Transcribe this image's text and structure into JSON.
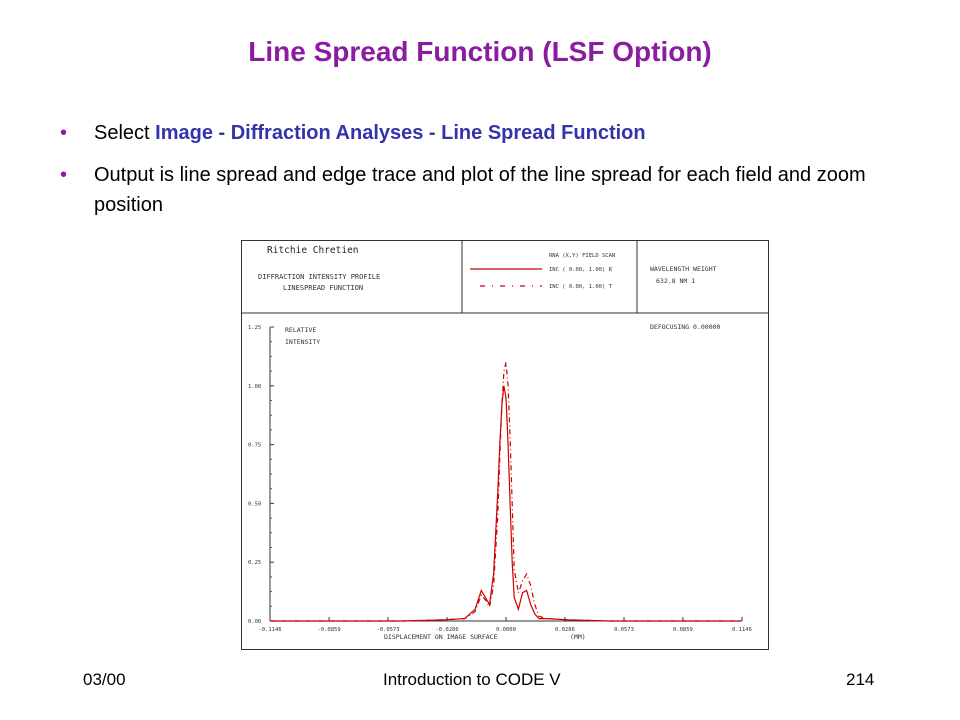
{
  "slide": {
    "title": "Line Spread Function (LSF Option)",
    "bullets": [
      {
        "prefix": "Select ",
        "highlight": "Image - Diffraction Analyses - Line Spread Function"
      },
      {
        "text": "Output is line spread and edge trace and plot of the line spread for each field and zoom position"
      }
    ],
    "bullet_char": "•",
    "footer_left": "03/00",
    "footer_center": "Introduction to CODE V",
    "footer_right": "214",
    "colors": {
      "title": "#8a1ca0",
      "highlight": "#3333aa",
      "curve": "#cc0000"
    }
  },
  "plot_header": {
    "lens_title": "Ritchie Chretien",
    "line1": "DIFFRACTION INTENSITY PROFILE",
    "line2": "LINESPREAD FUNCTION",
    "legend_header": "RNA  (X,Y) FIELD SCAN",
    "legend_r": "INC ( 0.00, 1.00)  R",
    "legend_t": "INC ( 0.00, 1.00)  T",
    "wave_header": "WAVELENGTH   WEIGHT",
    "wave_values": "632.8 NM      1",
    "defocus": "DEFOCUSING 0.00000",
    "ylabel1": "RELATIVE",
    "ylabel2": "INTENSITY",
    "xlabel": "DISPLACEMENT ON IMAGE SURFACE",
    "xunit": "(MM)"
  },
  "chart_data": {
    "type": "line",
    "xlabel": "DISPLACEMENT ON IMAGE SURFACE (MM)",
    "ylabel": "RELATIVE INTENSITY",
    "xlim": [
      -0.1146,
      0.1146
    ],
    "ylim": [
      0,
      1.25
    ],
    "x_ticks": [
      "-0.1146",
      "-0.0859",
      "-0.0573",
      "-0.0286",
      "0.0000",
      "0.0286",
      "0.0573",
      "0.0859",
      "0.1146"
    ],
    "y_ticks": [
      "0.00",
      "0.25",
      "0.50",
      "0.75",
      "1.00",
      "1.25"
    ],
    "y_tick_values": [
      0,
      0.25,
      0.5,
      0.75,
      1.0,
      1.25
    ],
    "series": [
      {
        "name": "R",
        "style": "solid",
        "x": [
          -0.1146,
          -0.05,
          -0.03,
          -0.02,
          -0.015,
          -0.012,
          -0.01,
          -0.008,
          -0.006,
          -0.004,
          -0.003,
          -0.002,
          -0.001,
          0.0,
          0.001,
          0.002,
          0.003,
          0.004,
          0.006,
          0.008,
          0.01,
          0.012,
          0.014,
          0.016,
          0.018,
          0.02,
          0.03,
          0.05,
          0.1146
        ],
        "y": [
          0,
          0,
          0.005,
          0.01,
          0.05,
          0.13,
          0.1,
          0.07,
          0.2,
          0.55,
          0.75,
          0.92,
          1.0,
          0.95,
          0.75,
          0.5,
          0.25,
          0.1,
          0.05,
          0.12,
          0.13,
          0.07,
          0.03,
          0.01,
          0.01,
          0.01,
          0.005,
          0,
          0
        ]
      },
      {
        "name": "T",
        "style": "dash-dot",
        "x": [
          -0.1146,
          -0.05,
          -0.03,
          -0.02,
          -0.015,
          -0.012,
          -0.01,
          -0.008,
          -0.006,
          -0.004,
          -0.003,
          -0.002,
          -0.001,
          0.0,
          0.001,
          0.002,
          0.003,
          0.004,
          0.006,
          0.008,
          0.01,
          0.012,
          0.014,
          0.016,
          0.018,
          0.02,
          0.03,
          0.05,
          0.1146
        ],
        "y": [
          0,
          0,
          0.005,
          0.01,
          0.04,
          0.11,
          0.09,
          0.06,
          0.15,
          0.45,
          0.7,
          0.92,
          1.06,
          1.1,
          1.0,
          0.78,
          0.5,
          0.22,
          0.12,
          0.17,
          0.2,
          0.15,
          0.07,
          0.02,
          0.015,
          0.01,
          0.005,
          0,
          0
        ]
      }
    ]
  }
}
